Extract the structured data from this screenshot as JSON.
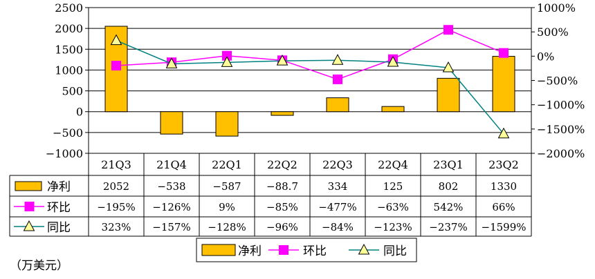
{
  "chart_data": {
    "type": "bar+line",
    "categories": [
      "21Q3",
      "21Q4",
      "22Q1",
      "22Q2",
      "22Q3",
      "22Q4",
      "23Q1",
      "23Q2"
    ],
    "left_axis": {
      "min": -1000,
      "max": 2500,
      "step": 500
    },
    "right_axis": {
      "min": -2000,
      "max": 1000,
      "step": 500,
      "unit": "%"
    },
    "grid": true,
    "legend_position": "bottom",
    "series": [
      {
        "name": "净利",
        "kind": "bar",
        "axis": "left",
        "color": "#FFC000",
        "values": [
          2052,
          -538,
          -587,
          -88.7,
          334,
          125,
          802,
          1330
        ],
        "labels": [
          "2052",
          "-538",
          "-587",
          "-88.7",
          "334",
          "125",
          "802",
          "1330"
        ]
      },
      {
        "name": "环比",
        "kind": "line",
        "axis": "right",
        "color": "#FF00FF",
        "marker": "square",
        "values": [
          -195,
          -126,
          9,
          -85,
          -477,
          -63,
          542,
          66
        ],
        "labels": [
          "-195%",
          "-126%",
          "9%",
          "-85%",
          "-477%",
          "-63%",
          "542%",
          "66%"
        ]
      },
      {
        "name": "同比",
        "kind": "line",
        "axis": "right",
        "color": "#008080",
        "marker": "triangle",
        "marker_fill": "#FFFF99",
        "values": [
          323,
          -157,
          -128,
          -96,
          -84,
          -123,
          -237,
          -1599
        ],
        "labels": [
          "323%",
          "-157%",
          "-128%",
          "-96%",
          "-84%",
          "-123%",
          "-237%",
          "-1599%"
        ]
      }
    ]
  },
  "unit_note": "（万美元）"
}
